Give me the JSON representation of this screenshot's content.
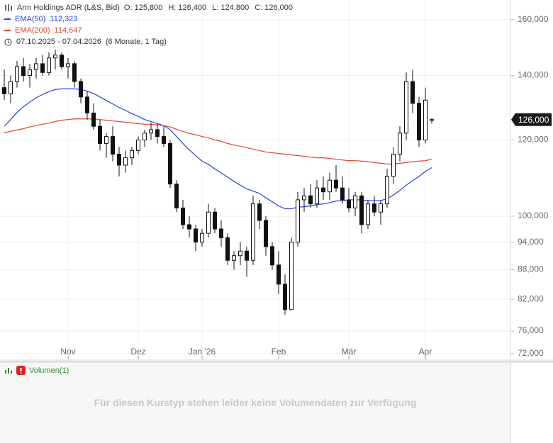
{
  "chart_data": {
    "type": "candlestick",
    "title": "Arm Holdings ADR (L&S, Bid)",
    "ohlc": [
      {
        "label": "O:",
        "value": "125,800"
      },
      {
        "label": "H:",
        "value": "126,400"
      },
      {
        "label": "L:",
        "value": "124,800"
      },
      {
        "label": "C:",
        "value": "126,000"
      }
    ],
    "date_range": "07.10.2025 - 07.04.2026",
    "period": "(6 Monate, 1 Tag)",
    "categories": [
      null,
      null,
      null,
      null,
      null,
      null,
      null,
      null,
      null,
      null,
      "Nov",
      null,
      null,
      null,
      null,
      null,
      null,
      null,
      null,
      null,
      null,
      "Dez",
      null,
      null,
      null,
      null,
      null,
      null,
      null,
      null,
      null,
      "Jan '26",
      null,
      null,
      null,
      null,
      null,
      null,
      null,
      null,
      null,
      null,
      null,
      "Feb",
      null,
      null,
      null,
      null,
      null,
      null,
      null,
      null,
      null,
      null,
      "Mär",
      null,
      null,
      null,
      null,
      null,
      null,
      null,
      null,
      null,
      null,
      null,
      "Apr",
      null
    ],
    "open": [
      136000,
      134000,
      138000,
      143000,
      140000,
      142000,
      144000,
      141000,
      146000,
      147000,
      143000,
      144000,
      138000,
      133000,
      128000,
      124000,
      119000,
      121000,
      116000,
      113000,
      115000,
      117000,
      120000,
      122000,
      123000,
      121000,
      119000,
      108000,
      102000,
      98000,
      97000,
      94000,
      96000,
      101000,
      97000,
      95000,
      90000,
      91000,
      92000,
      90000,
      103000,
      99000,
      93000,
      89000,
      85000,
      80000,
      94000,
      104000,
      105000,
      103000,
      107000,
      106000,
      109000,
      107000,
      104000,
      102000,
      105000,
      98000,
      103000,
      101000,
      103000,
      110000,
      116000,
      122000,
      138000,
      131000,
      120000,
      125800
    ],
    "high": [
      142000,
      140000,
      145000,
      146000,
      144000,
      146000,
      147000,
      148000,
      149000,
      148000,
      146000,
      145000,
      139000,
      135000,
      131000,
      126000,
      122000,
      124000,
      118000,
      117000,
      118000,
      121000,
      123000,
      125000,
      125000,
      124000,
      120000,
      109000,
      104000,
      100000,
      98000,
      97000,
      103000,
      102000,
      99000,
      96000,
      92000,
      94000,
      93000,
      105000,
      104000,
      100000,
      94000,
      92000,
      87000,
      95000,
      106000,
      107000,
      108000,
      109000,
      110000,
      111000,
      113000,
      110000,
      107000,
      106000,
      106000,
      104000,
      105000,
      104000,
      112000,
      118000,
      124000,
      141000,
      142000,
      133000,
      136000,
      126400
    ],
    "low": [
      132000,
      131000,
      136000,
      138000,
      136000,
      139000,
      140000,
      140000,
      142000,
      142000,
      139000,
      136000,
      131000,
      126000,
      123000,
      117000,
      115000,
      114000,
      110000,
      111000,
      113000,
      116000,
      118000,
      120000,
      119000,
      118000,
      107000,
      101000,
      97000,
      95000,
      92000,
      93000,
      95000,
      96000,
      93000,
      89000,
      88000,
      89000,
      86500,
      89000,
      97000,
      91000,
      88000,
      83000,
      79000,
      80000,
      93000,
      101000,
      102000,
      102000,
      104000,
      104000,
      106000,
      103000,
      101000,
      100000,
      96000,
      97000,
      100000,
      98000,
      102000,
      108000,
      114000,
      120000,
      128000,
      118000,
      119000,
      124800
    ],
    "close": [
      134000,
      138000,
      143000,
      140000,
      142000,
      144000,
      141000,
      146000,
      147000,
      143000,
      144000,
      138000,
      133000,
      128000,
      124000,
      119000,
      121000,
      116000,
      113000,
      115000,
      117000,
      120000,
      122000,
      123000,
      121000,
      119000,
      108000,
      102000,
      98000,
      97000,
      94000,
      96000,
      101000,
      97000,
      95000,
      90000,
      91000,
      92000,
      90000,
      103000,
      99000,
      93000,
      89000,
      85000,
      80000,
      94000,
      104000,
      105000,
      103000,
      107000,
      106000,
      109000,
      107000,
      104000,
      102000,
      105000,
      98000,
      103000,
      101000,
      103000,
      110000,
      116000,
      122000,
      138000,
      131000,
      120000,
      132000,
      126000
    ],
    "candle_color": "#111111",
    "series": [
      {
        "name": "EMA(50)",
        "legend_value": "112,323",
        "color": "#2a3fe0",
        "values": [
          124000,
          126000,
          128200,
          129900,
          131400,
          132700,
          133800,
          134700,
          135400,
          135600,
          135600,
          135600,
          135400,
          134900,
          134100,
          133000,
          131900,
          130800,
          129700,
          128800,
          127800,
          127000,
          126000,
          125400,
          124800,
          124200,
          123000,
          121000,
          119000,
          117200,
          115600,
          114100,
          113200,
          112000,
          110900,
          109800,
          108700,
          107700,
          106800,
          106200,
          105600,
          104500,
          103500,
          102500,
          101800,
          101800,
          102200,
          102300,
          102500,
          102800,
          103000,
          103300,
          103700,
          103800,
          104000,
          104000,
          104000,
          103800,
          103800,
          103800,
          104300,
          105200,
          106400,
          107700,
          108900,
          110000,
          111300,
          112323
        ]
      },
      {
        "name": "EMA(200)",
        "legend_value": "114,647",
        "color": "#e2432e",
        "values": [
          122100,
          122500,
          122900,
          123300,
          123800,
          124200,
          124600,
          125000,
          125400,
          125800,
          126000,
          126200,
          126200,
          126200,
          126200,
          126000,
          125800,
          125600,
          125400,
          125200,
          125000,
          124800,
          124600,
          124600,
          124400,
          124200,
          123800,
          123100,
          122500,
          121900,
          121500,
          121000,
          120600,
          120000,
          119600,
          119000,
          118600,
          118200,
          117800,
          117400,
          117000,
          116600,
          116400,
          116200,
          116000,
          115800,
          115600,
          115400,
          115200,
          115000,
          115000,
          114800,
          114600,
          114400,
          114200,
          114200,
          114100,
          113900,
          113700,
          113500,
          113300,
          113300,
          113500,
          113700,
          113900,
          114100,
          114200,
          114647
        ]
      }
    ],
    "log_scale": true,
    "grid": true,
    "ylim": [
      70900,
      167700
    ],
    "yticks": [
      {
        "value": 72000,
        "label": "72,000"
      },
      {
        "value": 76000,
        "label": "76,000"
      },
      {
        "value": 82000,
        "label": "82,000"
      },
      {
        "value": 88000,
        "label": "88,000"
      },
      {
        "value": 94000,
        "label": "94,000"
      },
      {
        "value": 100000,
        "label": "100,000"
      },
      {
        "value": 120000,
        "label": "120,000"
      },
      {
        "value": 140000,
        "label": "140,000"
      },
      {
        "value": 160000,
        "label": "160,000"
      }
    ],
    "last_price": {
      "value": 126000,
      "label": "126,000"
    },
    "volume_panel": {
      "title": "Volumen(1)",
      "message": "Für diesen Kurstyp stehen leider keine Volumendaten zur Verfügung"
    }
  }
}
